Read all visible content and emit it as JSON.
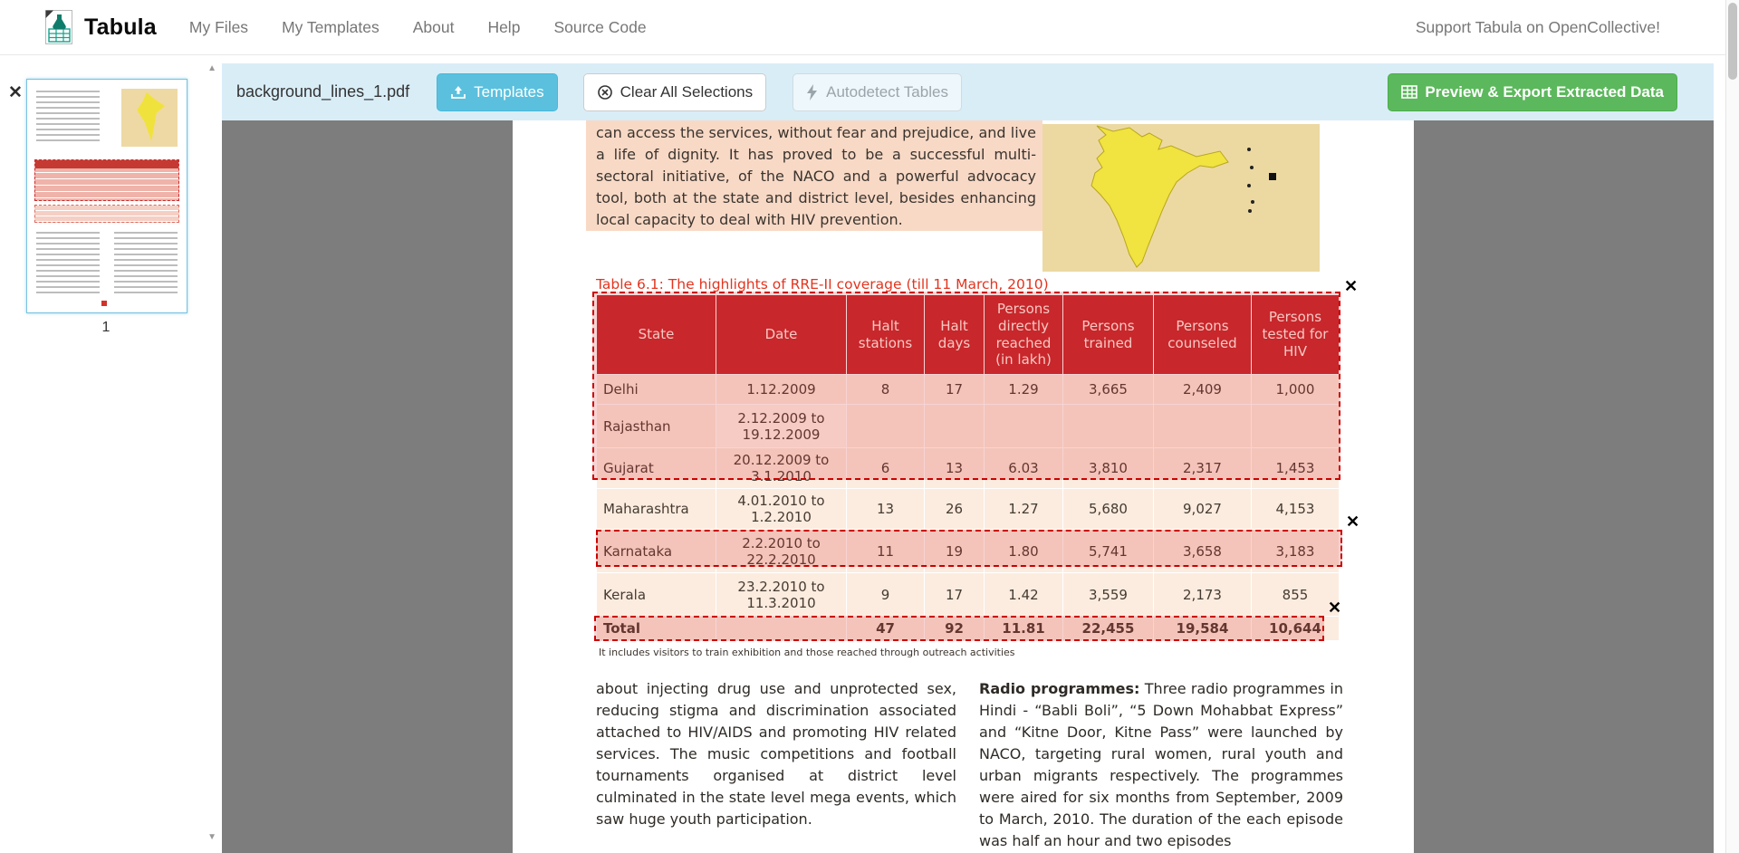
{
  "navbar": {
    "brand": "Tabula",
    "items": [
      {
        "label": "My Files"
      },
      {
        "label": "My Templates"
      },
      {
        "label": "About"
      },
      {
        "label": "Help"
      },
      {
        "label": "Source Code"
      }
    ],
    "support_link": "Support Tabula on OpenCollective!"
  },
  "sidebar": {
    "page_number": "1"
  },
  "toolbar": {
    "filename": "background_lines_1.pdf",
    "templates_button": "Templates",
    "clear_button": "Clear All Selections",
    "autodetect_button": "Autodetect Tables",
    "export_button": "Preview & Export Extracted Data"
  },
  "icons": {
    "close": "✕",
    "scroll_up": "▲",
    "scroll_down": "▼"
  },
  "document": {
    "intro_paragraph": "can access the services, without fear and prejudice, and live a life of dignity. It has proved to be a successful multi-sectoral initiative, of the NACO and a powerful advocacy tool, both at the state and district level, besides enhancing local capacity to deal with HIV prevention.",
    "table_title": "Table 6.1: The highlights of RRE-II coverage (till 11 March, 2010)",
    "table": {
      "headers": [
        "State",
        "Date",
        "Halt stations",
        "Halt days",
        "Persons directly reached (in lakh)",
        "Persons trained",
        "Persons counseled",
        "Persons tested for HIV"
      ],
      "rows": [
        [
          "Delhi",
          "1.12.2009",
          "8",
          "17",
          "1.29",
          "3,665",
          "2,409",
          "1,000"
        ],
        [
          "Rajasthan",
          "2.12.2009 to 19.12.2009",
          "",
          "",
          "",
          "",
          "",
          ""
        ],
        [
          "Gujarat",
          "20.12.2009 to 3.1.2010",
          "6",
          "13",
          "6.03",
          "3,810",
          "2,317",
          "1,453"
        ],
        [
          "Maharashtra",
          "4.01.2010 to 1.2.2010",
          "13",
          "26",
          "1.27",
          "5,680",
          "9,027",
          "4,153"
        ],
        [
          "Karnataka",
          "2.2.2010 to 22.2.2010",
          "11",
          "19",
          "1.80",
          "5,741",
          "3,658",
          "3,183"
        ],
        [
          "Kerala",
          "23.2.2010 to 11.3.2010",
          "9",
          "17",
          "1.42",
          "3,559",
          "2,173",
          "855"
        ],
        [
          "Total",
          "",
          "47",
          "92",
          "11.81",
          "22,455",
          "19,584",
          "10,644"
        ]
      ],
      "footnote": "It includes visitors to train exhibition and those reached through outreach activities"
    },
    "columns": {
      "left": "about injecting drug use and unprotected sex, reducing stigma and discrimination associated attached to HIV/AIDS and promoting HIV related services. The music competitions and football tournaments organised at district level culminated in the state level mega events, which saw huge youth participation.",
      "right_lead": "Radio programmes:",
      "right_rest": " Three radio programmes in Hindi - “Babli Boli”, “5 Down Mohabbat Express” and “Kitne Door, Kitne Pass” were launched by NACO, targeting rural women, rural youth and urban migrants respectively. The programmes were aired for six months from September, 2009 to March, 2010. The duration of the each episode was half an hour and two episodes"
    }
  },
  "colors": {
    "toolbar_bg": "#d9edf7",
    "templates_button": "#5bc0de",
    "export_button": "#5cb85c",
    "table_header_red": "#c5272d",
    "selection_border": "#cc0000",
    "viewer_bg": "#7d7d7d"
  }
}
